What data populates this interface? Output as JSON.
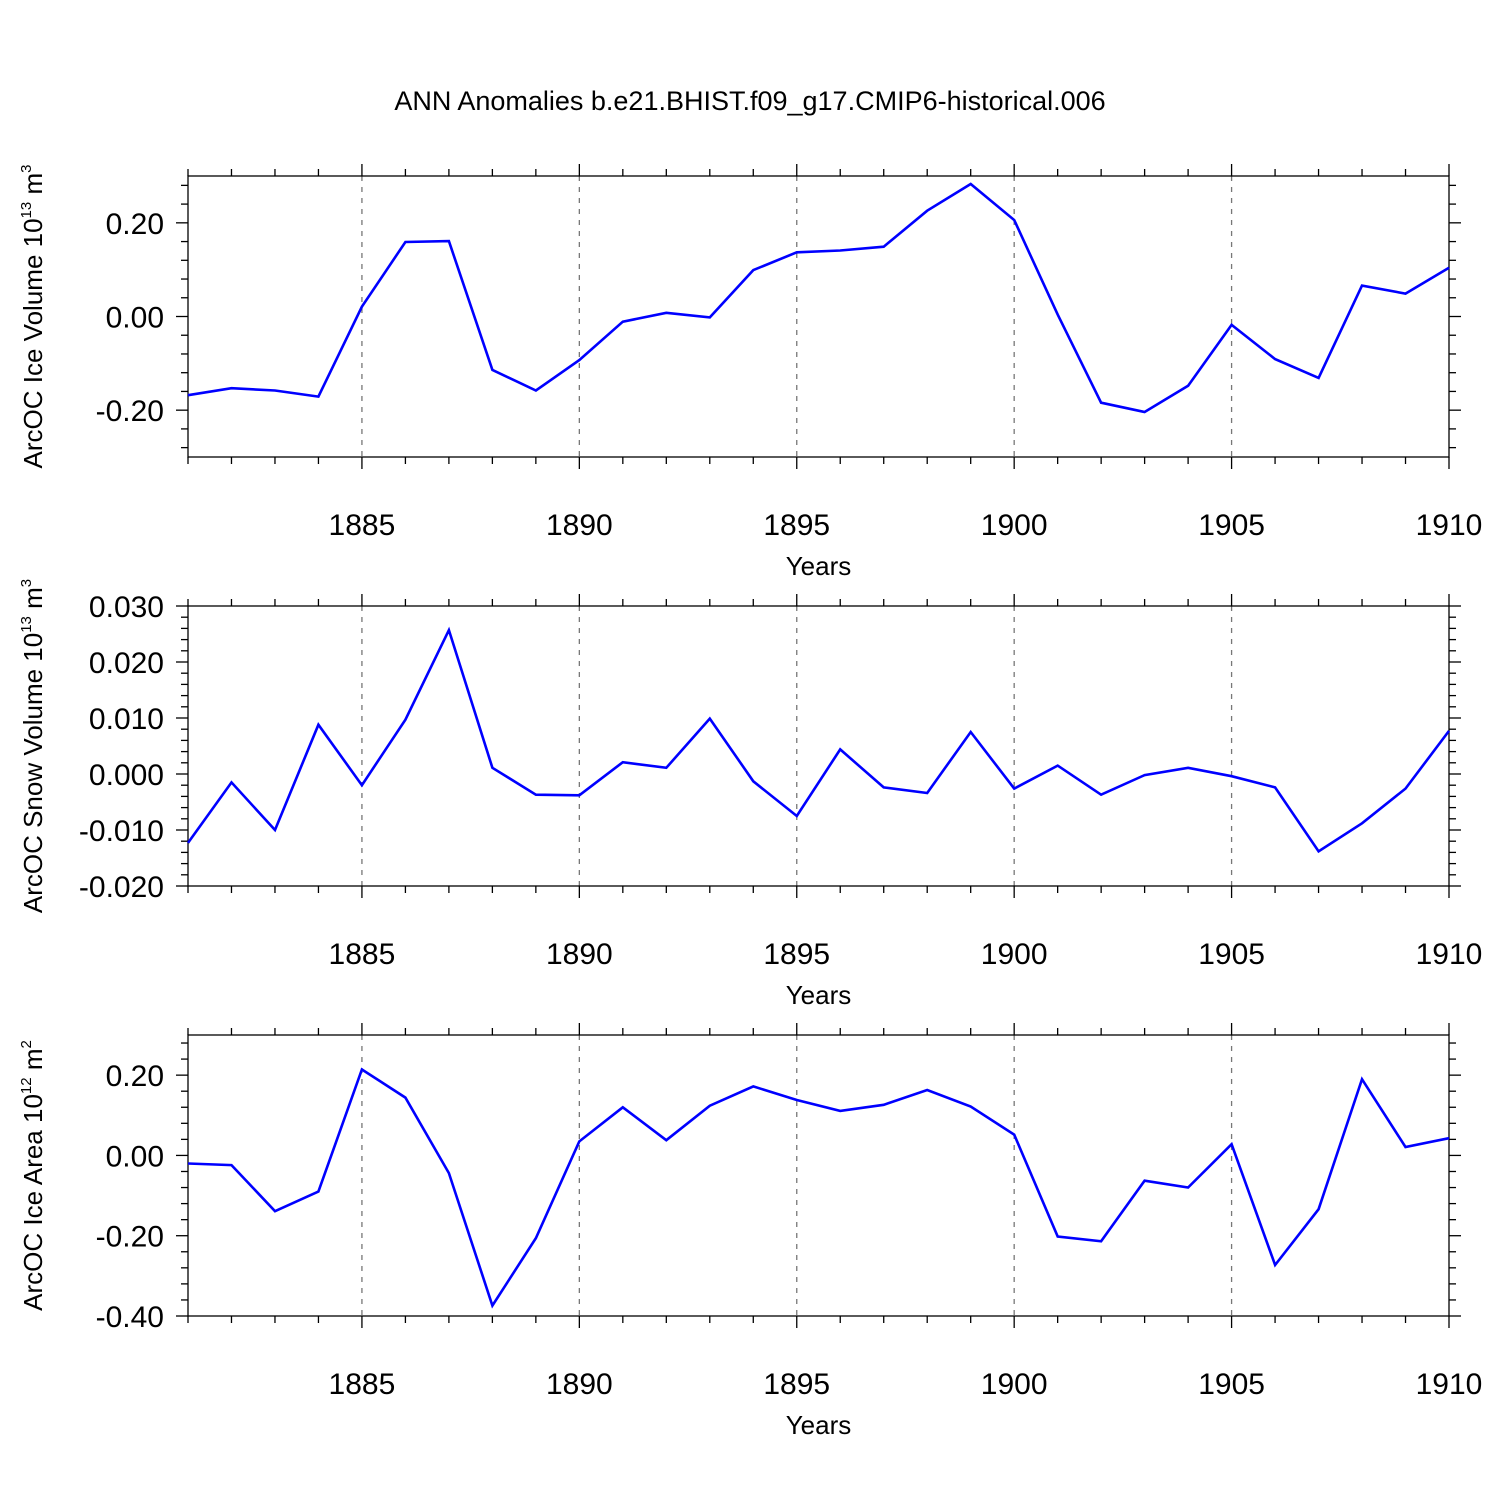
{
  "title": "ANN Anomalies b.e21.BHIST.f09_g17.CMIP6-historical.006",
  "colors": {
    "line": "#0000ff",
    "axis": "#000000",
    "grid": "#777777"
  },
  "chart_data": [
    {
      "type": "line",
      "ylabel_main": "ArcOC Ice Volume 10",
      "ylabel_exp": "13",
      "ylabel_unit": " m",
      "ylabel_unit_exp": "3",
      "xlabel": "Years",
      "xlim": [
        1881,
        1910
      ],
      "ylim": [
        -0.3,
        0.3
      ],
      "yticks": [
        -0.2,
        0.0,
        0.2
      ],
      "ytick_labels": [
        "-0.20",
        "0.00",
        "0.20"
      ],
      "xticks": [
        1885,
        1890,
        1895,
        1900,
        1905,
        1910
      ],
      "xtick_labels": [
        "1885",
        "1890",
        "1895",
        "1900",
        "1905",
        "1910"
      ],
      "x": [
        1881,
        1882,
        1883,
        1884,
        1885,
        1886,
        1887,
        1888,
        1889,
        1890,
        1891,
        1892,
        1893,
        1894,
        1895,
        1896,
        1897,
        1898,
        1899,
        1900,
        1901,
        1902,
        1903,
        1904,
        1905,
        1906,
        1907,
        1908,
        1909,
        1910
      ],
      "values": [
        -0.168,
        -0.153,
        -0.158,
        -0.171,
        0.021,
        0.159,
        0.161,
        -0.114,
        -0.158,
        -0.093,
        -0.011,
        0.008,
        -0.002,
        0.099,
        0.137,
        0.141,
        0.149,
        0.226,
        0.283,
        0.206,
        0.004,
        -0.184,
        -0.204,
        -0.148,
        -0.018,
        -0.091,
        -0.131,
        0.066,
        0.049,
        0.104
      ]
    },
    {
      "type": "line",
      "ylabel_main": "ArcOC Snow Volume 10",
      "ylabel_exp": "13",
      "ylabel_unit": " m",
      "ylabel_unit_exp": "3",
      "xlabel": "Years",
      "xlim": [
        1881,
        1910
      ],
      "ylim": [
        -0.02,
        0.03
      ],
      "yticks": [
        -0.02,
        -0.01,
        0.0,
        0.01,
        0.02,
        0.03
      ],
      "ytick_labels": [
        "-0.020",
        "-0.010",
        "0.000",
        "0.010",
        "0.020",
        "0.030"
      ],
      "xticks": [
        1885,
        1890,
        1895,
        1900,
        1905,
        1910
      ],
      "xtick_labels": [
        "1885",
        "1890",
        "1895",
        "1900",
        "1905",
        "1910"
      ],
      "x": [
        1881,
        1882,
        1883,
        1884,
        1885,
        1886,
        1887,
        1888,
        1889,
        1890,
        1891,
        1892,
        1893,
        1894,
        1895,
        1896,
        1897,
        1898,
        1899,
        1900,
        1901,
        1902,
        1903,
        1904,
        1905,
        1906,
        1907,
        1908,
        1909,
        1910
      ],
      "values": [
        -0.0123,
        -0.0015,
        -0.01,
        0.0088,
        -0.002,
        0.0097,
        0.0257,
        0.0011,
        -0.0037,
        -0.0038,
        0.0021,
        0.0011,
        0.0099,
        -0.0013,
        -0.0075,
        0.0044,
        -0.0024,
        -0.0034,
        0.0075,
        -0.0026,
        0.0015,
        -0.0037,
        -0.0002,
        0.0011,
        -0.0004,
        -0.0024,
        -0.0138,
        -0.0088,
        -0.0026,
        0.0077
      ]
    },
    {
      "type": "line",
      "ylabel_main": "ArcOC Ice Area 10",
      "ylabel_exp": "12",
      "ylabel_unit": " m",
      "ylabel_unit_exp": "2",
      "xlabel": "Years",
      "xlim": [
        1881,
        1910
      ],
      "ylim": [
        -0.4,
        0.3
      ],
      "yticks": [
        -0.4,
        -0.2,
        0.0,
        0.2
      ],
      "ytick_labels": [
        "-0.40",
        "-0.20",
        "0.00",
        "0.20"
      ],
      "xticks": [
        1885,
        1890,
        1895,
        1900,
        1905,
        1910
      ],
      "xtick_labels": [
        "1885",
        "1890",
        "1895",
        "1900",
        "1905",
        "1910"
      ],
      "x": [
        1881,
        1882,
        1883,
        1884,
        1885,
        1886,
        1887,
        1888,
        1889,
        1890,
        1891,
        1892,
        1893,
        1894,
        1895,
        1896,
        1897,
        1898,
        1899,
        1900,
        1901,
        1902,
        1903,
        1904,
        1905,
        1906,
        1907,
        1908,
        1909,
        1910
      ],
      "values": [
        -0.02,
        -0.024,
        -0.139,
        -0.09,
        0.214,
        0.144,
        -0.044,
        -0.374,
        -0.206,
        0.035,
        0.12,
        0.038,
        0.124,
        0.172,
        0.138,
        0.111,
        0.126,
        0.163,
        0.122,
        0.052,
        -0.202,
        -0.214,
        -0.063,
        -0.08,
        0.028,
        -0.273,
        -0.134,
        0.19,
        0.021,
        0.043
      ]
    }
  ]
}
